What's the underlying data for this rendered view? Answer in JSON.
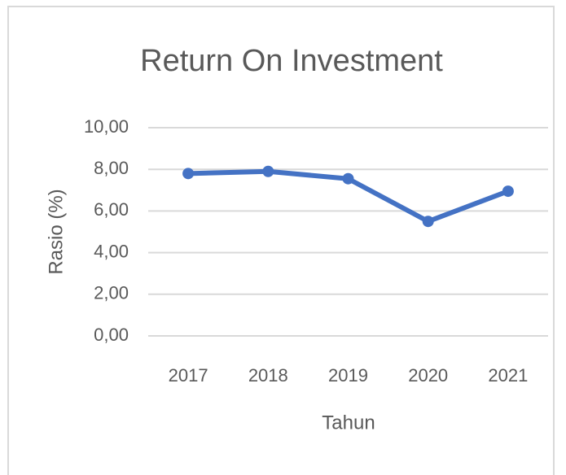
{
  "chart_data": {
    "type": "line",
    "title": "Return On Investment",
    "x_label": "Tahun",
    "y_label": "Rasio (%)",
    "categories": [
      "2017",
      "2018",
      "2019",
      "2020",
      "2021"
    ],
    "series": [
      {
        "name": "Return On Investment",
        "color": "#4472c4",
        "values": [
          7.8,
          7.9,
          7.55,
          5.5,
          6.95
        ]
      }
    ],
    "ylim": [
      0,
      10
    ],
    "yticks": [
      {
        "value": 0,
        "label": "0,00"
      },
      {
        "value": 2,
        "label": "2,00"
      },
      {
        "value": 4,
        "label": "4,00"
      },
      {
        "value": 6,
        "label": "6,00"
      },
      {
        "value": 8,
        "label": "8,00"
      },
      {
        "value": 10,
        "label": "10,00"
      }
    ],
    "grid": true
  }
}
